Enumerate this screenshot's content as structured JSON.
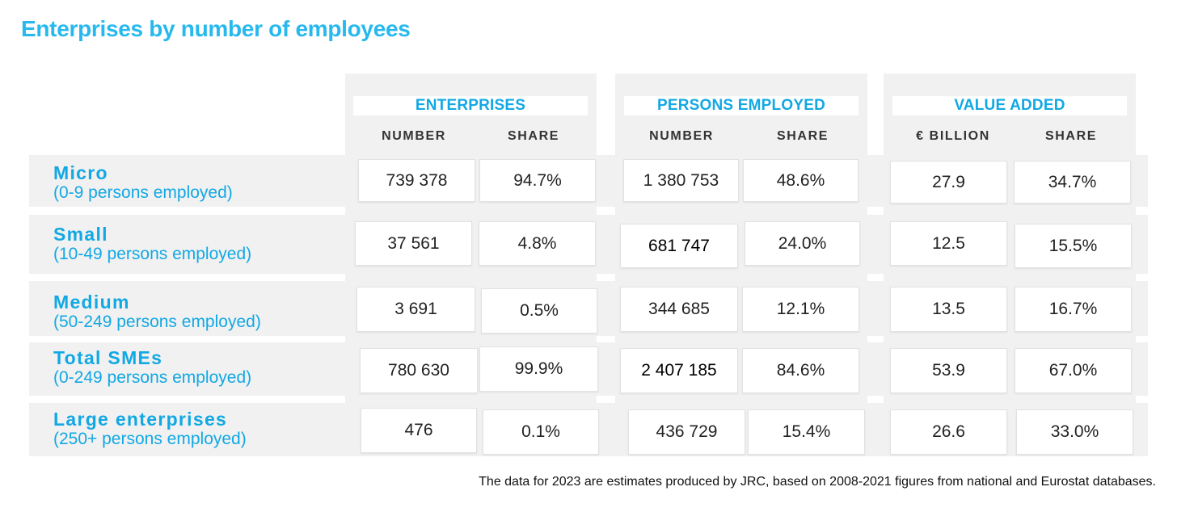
{
  "chart_data": {
    "type": "table",
    "title": "Enterprises by number of employees",
    "groups": [
      {
        "title": "ENTERPRISES",
        "columns": [
          "NUMBER",
          "SHARE"
        ]
      },
      {
        "title": "PERSONS EMPLOYED",
        "columns": [
          "NUMBER",
          "SHARE"
        ]
      },
      {
        "title": "VALUE ADDED",
        "columns": [
          "€ BILLION",
          "SHARE"
        ]
      }
    ],
    "rows": [
      {
        "name": "Micro",
        "sub": "(0-9 persons employed)",
        "values": [
          "739 378",
          "94.7%",
          "1 380 753",
          "48.6%",
          "27.9",
          "34.7%"
        ]
      },
      {
        "name": "Small",
        "sub": "(10-49 persons employed)",
        "values": [
          "37 561",
          "4.8%",
          "681 747",
          "24.0%",
          "12.5",
          "15.5%"
        ]
      },
      {
        "name": "Medium",
        "sub": "(50-249 persons employed)",
        "values": [
          "3 691",
          "0.5%",
          "344 685",
          "12.1%",
          "13.5",
          "16.7%"
        ]
      },
      {
        "name": "Total SMEs",
        "sub": "(0-249 persons employed)",
        "values": [
          "780 630",
          "99.9%",
          "2 407 185",
          "84.6%",
          "53.9",
          "67.0%"
        ]
      },
      {
        "name": "Large enterprises",
        "sub": "(250+ persons employed)",
        "values": [
          "476",
          "0.1%",
          "436 729",
          "15.4%",
          "26.6",
          "33.0%"
        ]
      }
    ],
    "footnote": "The data for 2023 are estimates produced by JRC, based on 2008-2021 figures from national and Eurostat databases."
  }
}
